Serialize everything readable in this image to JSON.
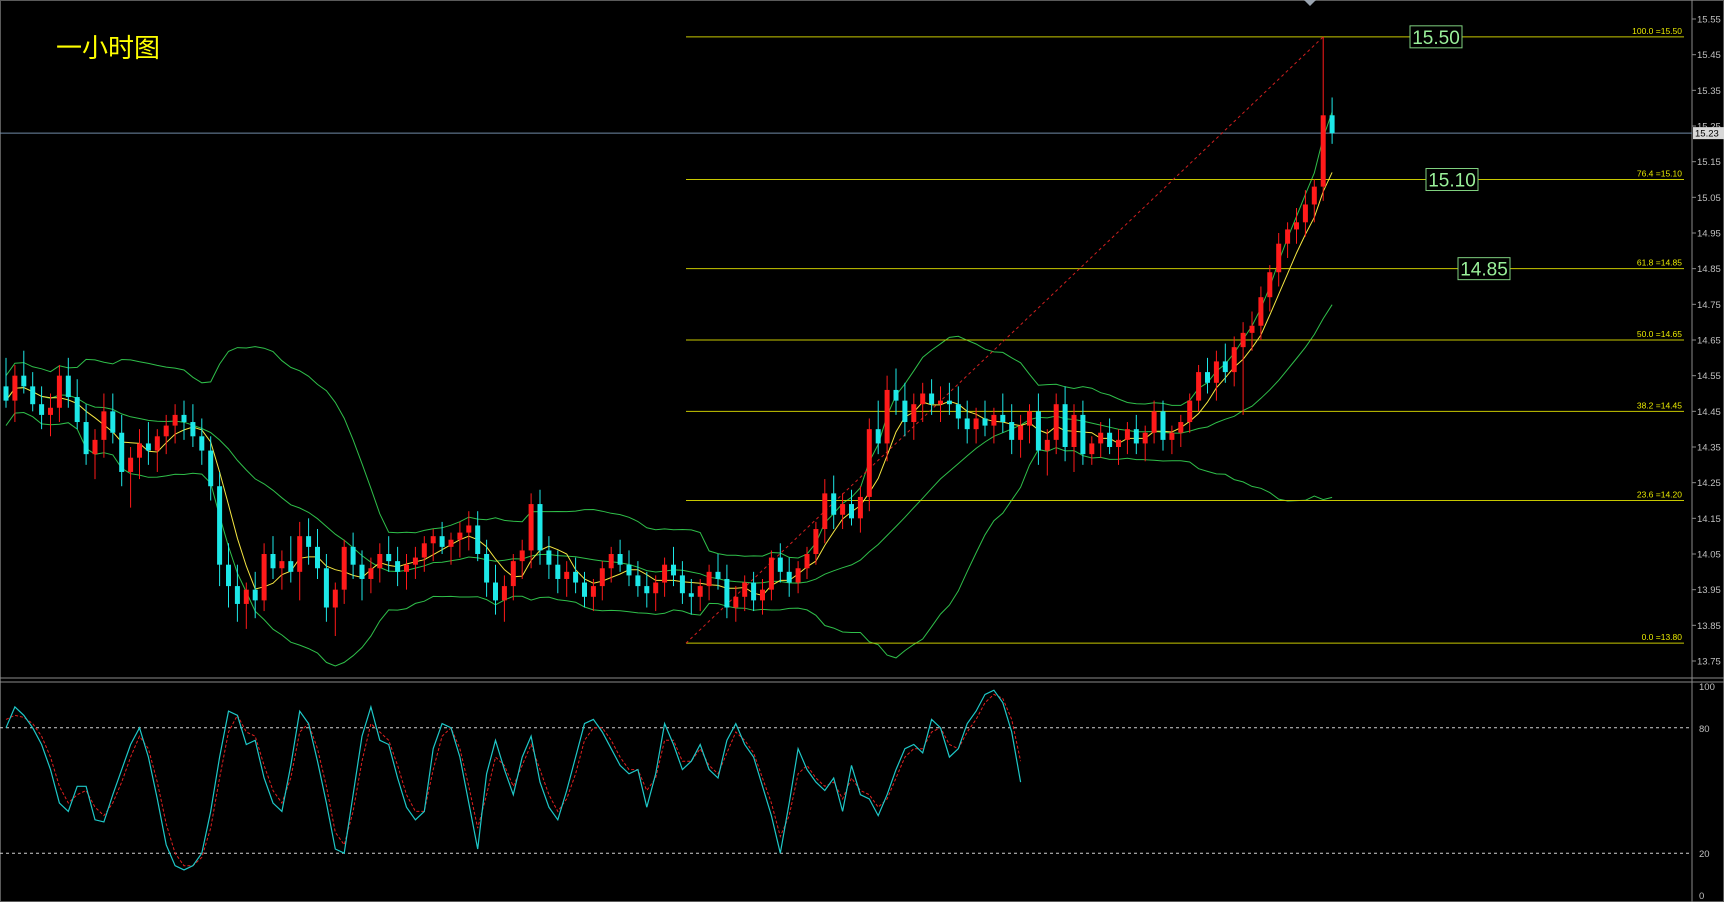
{
  "title": "一小时图",
  "colors": {
    "background": "#000000",
    "bull": "#ff1a1a",
    "bear": "#1de8e8",
    "band": "#2fbf4a",
    "ma": "#f5e642",
    "fib": "#c8c800",
    "fib_label": "#e8e800",
    "trend": "#d02020",
    "stoch_k": "#1ec8c8",
    "stoch_d": "#e02020",
    "axis_text": "#c0c0c0",
    "badge_bg": "#000000",
    "badge_border": "#7fd07f",
    "badge_text": "#9af09a",
    "price_line": "#6f8aa6"
  },
  "chart_data": [
    {
      "type": "candlestick",
      "title": "一小时图",
      "ylim": [
        13.7,
        15.58
      ],
      "y_ticks": [
        "15.55",
        "15.45",
        "15.35",
        "15.25",
        "15.15",
        "15.05",
        "14.95",
        "14.85",
        "14.75",
        "14.65",
        "14.55",
        "14.45",
        "14.35",
        "14.25",
        "14.15",
        "14.05",
        "13.95",
        "13.85",
        "13.75"
      ],
      "current_price": "15.23",
      "fib_levels": [
        {
          "ratio": "100.0",
          "price": 15.5,
          "label": "=15.50"
        },
        {
          "ratio": "76.4",
          "price": 15.1,
          "label": "=15.10"
        },
        {
          "ratio": "61.8",
          "price": 14.85,
          "label": "=14.85"
        },
        {
          "ratio": "50.0",
          "price": 14.65,
          "label": "=14.65"
        },
        {
          "ratio": "38.2",
          "price": 14.45,
          "label": "=14.45"
        },
        {
          "ratio": "23.6",
          "price": 14.2,
          "label": "=14.20"
        },
        {
          "ratio": "0.0",
          "price": 13.8,
          "label": "=13.80"
        }
      ],
      "key_levels": [
        "15.50",
        "15.10",
        "14.85"
      ],
      "trendline": {
        "from_price": 13.8,
        "to_price": 15.5
      },
      "ohlc": [
        [
          14.52,
          14.6,
          14.46,
          14.48
        ],
        [
          14.48,
          14.58,
          14.42,
          14.55
        ],
        [
          14.55,
          14.62,
          14.5,
          14.52
        ],
        [
          14.52,
          14.56,
          14.45,
          14.47
        ],
        [
          14.47,
          14.52,
          14.4,
          14.44
        ],
        [
          14.44,
          14.5,
          14.38,
          14.46
        ],
        [
          14.46,
          14.58,
          14.42,
          14.55
        ],
        [
          14.55,
          14.6,
          14.46,
          14.49
        ],
        [
          14.49,
          14.54,
          14.4,
          14.42
        ],
        [
          14.42,
          14.47,
          14.3,
          14.33
        ],
        [
          14.33,
          14.4,
          14.26,
          14.37
        ],
        [
          14.37,
          14.5,
          14.32,
          14.45
        ],
        [
          14.45,
          14.5,
          14.36,
          14.39
        ],
        [
          14.39,
          14.44,
          14.24,
          14.28
        ],
        [
          14.28,
          14.35,
          14.18,
          14.32
        ],
        [
          14.32,
          14.4,
          14.26,
          14.36
        ],
        [
          14.36,
          14.42,
          14.3,
          14.34
        ],
        [
          14.34,
          14.4,
          14.28,
          14.38
        ],
        [
          14.38,
          14.44,
          14.33,
          14.41
        ],
        [
          14.41,
          14.47,
          14.36,
          14.44
        ],
        [
          14.44,
          14.48,
          14.37,
          14.42
        ],
        [
          14.42,
          14.47,
          14.35,
          14.38
        ],
        [
          14.38,
          14.43,
          14.3,
          14.34
        ],
        [
          14.34,
          14.38,
          14.2,
          14.24
        ],
        [
          14.24,
          14.28,
          13.96,
          14.02
        ],
        [
          14.02,
          14.08,
          13.9,
          13.96
        ],
        [
          13.96,
          14.02,
          13.86,
          13.91
        ],
        [
          13.91,
          13.97,
          13.84,
          13.95
        ],
        [
          13.95,
          14.0,
          13.87,
          13.92
        ],
        [
          13.92,
          14.08,
          13.89,
          14.05
        ],
        [
          14.05,
          14.1,
          13.98,
          14.01
        ],
        [
          14.01,
          14.06,
          13.95,
          14.03
        ],
        [
          14.03,
          14.1,
          13.97,
          14.0
        ],
        [
          14.0,
          14.14,
          13.92,
          14.1
        ],
        [
          14.1,
          14.15,
          14.02,
          14.07
        ],
        [
          14.07,
          14.12,
          13.98,
          14.01
        ],
        [
          14.01,
          14.05,
          13.86,
          13.9
        ],
        [
          13.9,
          13.97,
          13.82,
          13.95
        ],
        [
          13.95,
          14.09,
          13.91,
          14.07
        ],
        [
          14.07,
          14.11,
          13.98,
          14.02
        ],
        [
          14.02,
          14.06,
          13.92,
          13.98
        ],
        [
          13.98,
          14.04,
          13.94,
          14.01
        ],
        [
          14.01,
          14.08,
          13.97,
          14.05
        ],
        [
          14.05,
          14.1,
          14.0,
          14.03
        ],
        [
          14.03,
          14.07,
          13.96,
          14.0
        ],
        [
          14.0,
          14.05,
          13.95,
          14.02
        ],
        [
          14.02,
          14.07,
          13.98,
          14.04
        ],
        [
          14.04,
          14.1,
          14.0,
          14.08
        ],
        [
          14.08,
          14.12,
          14.03,
          14.1
        ],
        [
          14.1,
          14.14,
          14.05,
          14.07
        ],
        [
          14.07,
          14.11,
          14.02,
          14.09
        ],
        [
          14.09,
          14.14,
          14.04,
          14.11
        ],
        [
          14.11,
          14.17,
          14.06,
          14.13
        ],
        [
          14.13,
          14.17,
          14.03,
          14.05
        ],
        [
          14.05,
          14.09,
          13.93,
          13.97
        ],
        [
          13.97,
          14.02,
          13.88,
          13.92
        ],
        [
          13.92,
          13.99,
          13.86,
          13.96
        ],
        [
          13.96,
          14.05,
          13.92,
          14.03
        ],
        [
          14.03,
          14.09,
          13.98,
          14.06
        ],
        [
          14.06,
          14.22,
          14.01,
          14.19
        ],
        [
          14.19,
          14.23,
          14.02,
          14.06
        ],
        [
          14.06,
          14.1,
          13.98,
          14.02
        ],
        [
          14.02,
          14.06,
          13.94,
          13.98
        ],
        [
          13.98,
          14.03,
          13.93,
          14.0
        ],
        [
          14.0,
          14.04,
          13.94,
          13.97
        ],
        [
          13.97,
          14.0,
          13.9,
          13.93
        ],
        [
          13.93,
          13.98,
          13.89,
          13.96
        ],
        [
          13.96,
          14.03,
          13.92,
          14.01
        ],
        [
          14.01,
          14.07,
          13.97,
          14.05
        ],
        [
          14.05,
          14.09,
          14.0,
          14.02
        ],
        [
          14.02,
          14.06,
          13.96,
          13.99
        ],
        [
          13.99,
          14.03,
          13.93,
          13.96
        ],
        [
          13.96,
          14.0,
          13.9,
          13.94
        ],
        [
          13.94,
          13.99,
          13.89,
          13.97
        ],
        [
          13.97,
          14.04,
          13.93,
          14.02
        ],
        [
          14.02,
          14.07,
          13.96,
          13.99
        ],
        [
          13.99,
          14.03,
          13.91,
          13.94
        ],
        [
          13.94,
          13.98,
          13.88,
          13.93
        ],
        [
          13.93,
          13.98,
          13.89,
          13.96
        ],
        [
          13.96,
          14.02,
          13.92,
          14.0
        ],
        [
          14.0,
          14.05,
          13.95,
          13.98
        ],
        [
          13.98,
          14.02,
          13.87,
          13.9
        ],
        [
          13.9,
          13.96,
          13.86,
          13.93
        ],
        [
          13.93,
          13.99,
          13.89,
          13.97
        ],
        [
          13.97,
          14.0,
          13.89,
          13.92
        ],
        [
          13.92,
          13.98,
          13.88,
          13.95
        ],
        [
          13.95,
          14.06,
          13.92,
          14.04
        ],
        [
          14.04,
          14.08,
          13.97,
          14.0
        ],
        [
          14.0,
          14.04,
          13.93,
          13.97
        ],
        [
          13.97,
          14.03,
          13.94,
          14.01
        ],
        [
          14.01,
          14.07,
          13.98,
          14.05
        ],
        [
          14.05,
          14.14,
          14.02,
          14.12
        ],
        [
          14.12,
          14.26,
          14.08,
          14.22
        ],
        [
          14.22,
          14.27,
          14.12,
          14.16
        ],
        [
          14.16,
          14.22,
          14.12,
          14.19
        ],
        [
          14.19,
          14.23,
          14.13,
          14.15
        ],
        [
          14.15,
          14.24,
          14.11,
          14.21
        ],
        [
          14.21,
          14.43,
          14.17,
          14.4
        ],
        [
          14.4,
          14.48,
          14.33,
          14.36
        ],
        [
          14.36,
          14.55,
          14.31,
          14.51
        ],
        [
          14.51,
          14.57,
          14.44,
          14.48
        ],
        [
          14.48,
          14.53,
          14.38,
          14.42
        ],
        [
          14.42,
          14.5,
          14.37,
          14.47
        ],
        [
          14.47,
          14.53,
          14.42,
          14.5
        ],
        [
          14.5,
          14.54,
          14.44,
          14.47
        ],
        [
          14.47,
          14.52,
          14.42,
          14.48
        ],
        [
          14.48,
          14.53,
          14.44,
          14.47
        ],
        [
          14.47,
          14.52,
          14.4,
          14.43
        ],
        [
          14.43,
          14.48,
          14.36,
          14.4
        ],
        [
          14.4,
          14.46,
          14.36,
          14.43
        ],
        [
          14.43,
          14.48,
          14.38,
          14.41
        ],
        [
          14.41,
          14.46,
          14.36,
          14.44
        ],
        [
          14.44,
          14.5,
          14.39,
          14.42
        ],
        [
          14.42,
          14.47,
          14.33,
          14.37
        ],
        [
          14.37,
          14.44,
          14.32,
          14.41
        ],
        [
          14.41,
          14.47,
          14.36,
          14.45
        ],
        [
          14.45,
          14.5,
          14.3,
          14.34
        ],
        [
          14.34,
          14.4,
          14.27,
          14.37
        ],
        [
          14.37,
          14.5,
          14.33,
          14.47
        ],
        [
          14.47,
          14.52,
          14.31,
          14.35
        ],
        [
          14.35,
          14.47,
          14.28,
          14.44
        ],
        [
          14.44,
          14.48,
          14.3,
          14.33
        ],
        [
          14.33,
          14.38,
          14.3,
          14.36
        ],
        [
          14.36,
          14.42,
          14.32,
          14.39
        ],
        [
          14.39,
          14.43,
          14.33,
          14.35
        ],
        [
          14.35,
          14.4,
          14.3,
          14.37
        ],
        [
          14.37,
          14.42,
          14.33,
          14.4
        ],
        [
          14.4,
          14.44,
          14.33,
          14.36
        ],
        [
          14.36,
          14.41,
          14.31,
          14.39
        ],
        [
          14.39,
          14.48,
          14.36,
          14.45
        ],
        [
          14.45,
          14.48,
          14.34,
          14.37
        ],
        [
          14.37,
          14.41,
          14.33,
          14.39
        ],
        [
          14.39,
          14.44,
          14.35,
          14.42
        ],
        [
          14.42,
          14.5,
          14.39,
          14.48
        ],
        [
          14.48,
          14.58,
          14.45,
          14.56
        ],
        [
          14.56,
          14.6,
          14.5,
          14.53
        ],
        [
          14.53,
          14.62,
          14.48,
          14.59
        ],
        [
          14.59,
          14.64,
          14.53,
          14.56
        ],
        [
          14.56,
          14.66,
          14.52,
          14.63
        ],
        [
          14.63,
          14.7,
          14.44,
          14.67
        ],
        [
          14.67,
          14.73,
          14.62,
          14.69
        ],
        [
          14.69,
          14.8,
          14.65,
          14.77
        ],
        [
          14.77,
          14.86,
          14.73,
          14.84
        ],
        [
          14.84,
          14.95,
          14.8,
          14.92
        ],
        [
          14.92,
          14.98,
          14.88,
          14.96
        ],
        [
          14.96,
          15.02,
          14.92,
          14.98
        ],
        [
          14.98,
          15.07,
          14.94,
          15.03
        ],
        [
          15.03,
          15.1,
          14.98,
          15.08
        ],
        [
          15.08,
          15.5,
          15.04,
          15.28
        ],
        [
          15.28,
          15.33,
          15.2,
          15.23
        ]
      ],
      "indicators": [
        "bollinger_bands",
        "moving_average"
      ]
    },
    {
      "type": "line",
      "indicator": "stochastic",
      "ylim": [
        0,
        100
      ],
      "y_ticks": [
        "100",
        "80",
        "20",
        "0"
      ],
      "levels": [
        80,
        20
      ],
      "series": [
        {
          "key": "k",
          "values": [
            80,
            90,
            86,
            80,
            72,
            60,
            44,
            40,
            52,
            52,
            36,
            35,
            48,
            60,
            72,
            80,
            66,
            46,
            24,
            14,
            12,
            14,
            20,
            40,
            66,
            88,
            86,
            72,
            74,
            56,
            44,
            40,
            62,
            88,
            82,
            64,
            44,
            22,
            20,
            48,
            76,
            90,
            74,
            72,
            56,
            42,
            36,
            40,
            70,
            82,
            80,
            66,
            44,
            22,
            58,
            74,
            60,
            48,
            66,
            76,
            54,
            42,
            36,
            50,
            66,
            82,
            84,
            78,
            70,
            62,
            58,
            60,
            42,
            58,
            82,
            72,
            60,
            64,
            72,
            60,
            56,
            74,
            82,
            72,
            66,
            52,
            38,
            20,
            44,
            70,
            60,
            54,
            50,
            56,
            40,
            62,
            48,
            46,
            38,
            48,
            60,
            70,
            72,
            68,
            84,
            80,
            66,
            70,
            82,
            88,
            96,
            98,
            92,
            78,
            54
          ]
        },
        {
          "key": "d",
          "values": [
            84,
            86,
            85,
            82,
            76,
            66,
            52,
            44,
            48,
            50,
            42,
            38,
            44,
            54,
            66,
            76,
            70,
            54,
            34,
            20,
            14,
            14,
            18,
            32,
            56,
            78,
            86,
            78,
            76,
            62,
            50,
            44,
            56,
            78,
            82,
            70,
            52,
            30,
            24,
            40,
            64,
            82,
            78,
            74,
            62,
            48,
            40,
            40,
            60,
            76,
            80,
            70,
            52,
            32,
            48,
            66,
            62,
            52,
            62,
            72,
            60,
            48,
            40,
            46,
            58,
            74,
            80,
            80,
            74,
            66,
            60,
            60,
            50,
            56,
            74,
            74,
            64,
            64,
            70,
            62,
            58,
            68,
            78,
            74,
            68,
            56,
            44,
            28,
            38,
            58,
            62,
            56,
            52,
            54,
            46,
            56,
            50,
            48,
            42,
            46,
            56,
            66,
            70,
            70,
            78,
            80,
            72,
            70,
            78,
            84,
            92,
            96,
            94,
            84,
            64
          ]
        }
      ]
    }
  ]
}
